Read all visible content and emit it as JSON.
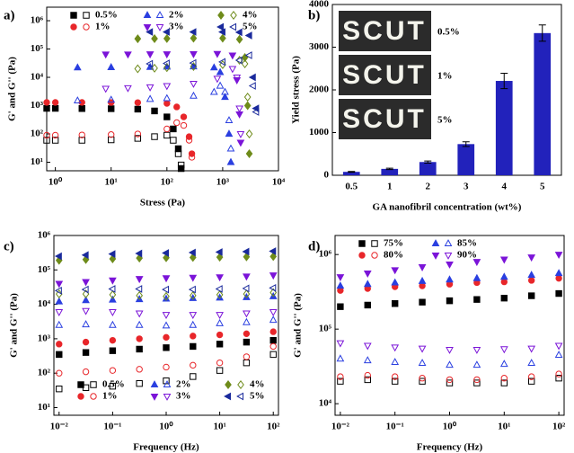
{
  "chart_data": [
    {
      "type": "scatter",
      "panel_label": "a)",
      "xlabel": "Stress (Pa)",
      "ylabel": "G' and G'' (Pa)",
      "xlog": true,
      "ylog": true,
      "legend": "upper left",
      "xlim": [
        0.7,
        10000
      ],
      "ylim": [
        5,
        3000000
      ],
      "xticks": [
        {
          "value": 1,
          "label": "10⁰"
        },
        {
          "value": 10,
          "label": "10¹"
        },
        {
          "value": 100,
          "label": "10²"
        },
        {
          "value": 1000,
          "label": "10³"
        },
        {
          "value": 10000,
          "label": "10⁴"
        }
      ],
      "yticks": [
        {
          "value": 10,
          "label": "10¹"
        },
        {
          "value": 100,
          "label": "10²"
        },
        {
          "value": 1000,
          "label": "10³"
        },
        {
          "value": 10000,
          "label": "10⁴"
        },
        {
          "value": 100000,
          "label": "10⁵"
        },
        {
          "value": 1000000,
          "label": "10⁶"
        }
      ],
      "series": [
        {
          "name": "0.5%",
          "color": "#000000",
          "marker": "square",
          "x": [
            0.7,
            1,
            3,
            10,
            30,
            60,
            100,
            130,
            160,
            180
          ],
          "storage": [
            800,
            800,
            790,
            780,
            750,
            650,
            400,
            150,
            30,
            6
          ],
          "loss": [
            60,
            60,
            60,
            62,
            70,
            80,
            90,
            60,
            20,
            8
          ]
        },
        {
          "name": "1%",
          "color": "#e8262a",
          "marker": "circle",
          "x": [
            0.7,
            1,
            3,
            10,
            30,
            100,
            150,
            200,
            250,
            280
          ],
          "storage": [
            1300,
            1300,
            1300,
            1290,
            1280,
            1200,
            900,
            400,
            80,
            20
          ],
          "loss": [
            90,
            90,
            92,
            95,
            100,
            150,
            250,
            200,
            60,
            15
          ]
        },
        {
          "name": "2%",
          "color": "#2a3fe0",
          "marker": "triangle-up",
          "x": [
            2.5,
            10,
            50,
            100,
            300,
            700,
            900,
            1100,
            1300,
            1400
          ],
          "storage": [
            22000,
            22500,
            23000,
            23500,
            24000,
            22000,
            15000,
            2000,
            100,
            10
          ],
          "loss": [
            1500,
            1600,
            1700,
            1800,
            2200,
            3000,
            5000,
            3000,
            300,
            30
          ]
        },
        {
          "name": "3%",
          "color": "#7b14d8",
          "marker": "triangle-down",
          "x": [
            8,
            20,
            50,
            100,
            300,
            800,
            1500,
            1800,
            2000,
            2100
          ],
          "storage": [
            65000,
            65000,
            66000,
            66000,
            67000,
            68000,
            60000,
            8000,
            500,
            50
          ],
          "loss": [
            4000,
            4200,
            4500,
            5000,
            6000,
            9000,
            20000,
            10000,
            800,
            100
          ]
        },
        {
          "name": "4%",
          "color": "#6e8b1a",
          "marker": "diamond",
          "x": [
            30,
            60,
            100,
            300,
            1000,
            2000,
            2500,
            2800,
            3000
          ],
          "storage": [
            230000,
            232000,
            235000,
            240000,
            240000,
            220000,
            50000,
            1000,
            20
          ],
          "loss": [
            20000,
            21000,
            22000,
            24000,
            28000,
            40000,
            30000,
            2000,
            100
          ]
        },
        {
          "name": "5%",
          "color": "#1a2a9c",
          "marker": "triangle-left",
          "x": [
            50,
            100,
            300,
            1000,
            2000,
            3000,
            3500,
            4000
          ],
          "storage": [
            400000,
            400000,
            400000,
            400000,
            390000,
            300000,
            10000,
            800
          ],
          "loss": [
            30000,
            31000,
            32000,
            35000,
            40000,
            60000,
            5000,
            600
          ]
        }
      ]
    },
    {
      "type": "bar",
      "panel_label": "b)",
      "xlabel": "GA nanofibril concentration (wt%)",
      "ylabel": "Yield stress (Pa)",
      "categories": [
        "0.5",
        "1",
        "2",
        "3",
        "4",
        "5"
      ],
      "values": [
        80,
        150,
        310,
        730,
        2210,
        3330
      ],
      "errors": [
        10,
        15,
        25,
        55,
        180,
        190
      ],
      "color": "#2222bb",
      "ylim": [
        0,
        4000
      ],
      "yticks": [
        0,
        1000,
        2000,
        3000,
        4000
      ],
      "inset": {
        "text": "SCUT",
        "labels": [
          "0.5%",
          "1%",
          "5%"
        ]
      }
    },
    {
      "type": "scatter",
      "panel_label": "c)",
      "xlabel": "Frequency (Hz)",
      "ylabel": "G' and G'' (Pa)",
      "xlog": true,
      "ylog": true,
      "legend": "lower left",
      "xlim": [
        0.008,
        125
      ],
      "ylim": [
        6,
        1000000
      ],
      "xticks": [
        {
          "value": 0.01,
          "label": "10⁻²"
        },
        {
          "value": 0.1,
          "label": "10⁻¹"
        },
        {
          "value": 1,
          "label": "10⁰"
        },
        {
          "value": 10,
          "label": "10¹"
        },
        {
          "value": 100,
          "label": "10²"
        }
      ],
      "yticks": [
        {
          "value": 10,
          "label": "10¹"
        },
        {
          "value": 100,
          "label": "10²"
        },
        {
          "value": 1000,
          "label": "10³"
        },
        {
          "value": 10000,
          "label": "10⁴"
        },
        {
          "value": 100000,
          "label": "10⁵"
        },
        {
          "value": 1000000,
          "label": "10⁶"
        }
      ],
      "x": [
        0.01,
        0.0316,
        0.1,
        0.316,
        1,
        3.16,
        10,
        31.6,
        100
      ],
      "series": [
        {
          "name": "0.5%",
          "color": "#000000",
          "marker": "square",
          "storage": [
            350,
            400,
            450,
            500,
            550,
            600,
            700,
            800,
            900
          ],
          "loss": [
            35,
            38,
            42,
            50,
            60,
            80,
            120,
            200,
            350
          ]
        },
        {
          "name": "1%",
          "color": "#e8262a",
          "marker": "circle",
          "storage": [
            700,
            800,
            900,
            1000,
            1100,
            1200,
            1300,
            1400,
            1600
          ],
          "loss": [
            100,
            110,
            120,
            130,
            150,
            170,
            200,
            300,
            600
          ]
        },
        {
          "name": "2%",
          "color": "#2a3fe0",
          "marker": "triangle-up",
          "storage": [
            12000,
            13000,
            13500,
            14000,
            14500,
            15000,
            15500,
            16000,
            17000
          ],
          "loss": [
            2500,
            2600,
            2500,
            2500,
            2400,
            2500,
            2800,
            3000,
            3500
          ]
        },
        {
          "name": "3%",
          "color": "#7b14d8",
          "marker": "triangle-down",
          "storage": [
            40000,
            45000,
            50000,
            55000,
            58000,
            60000,
            62000,
            65000,
            70000
          ],
          "loss": [
            6000,
            6500,
            6000,
            5500,
            5000,
            5000,
            5000,
            5500,
            6000
          ]
        },
        {
          "name": "4%",
          "color": "#6e8b1a",
          "marker": "diamond",
          "storage": [
            190000,
            200000,
            210000,
            220000,
            225000,
            230000,
            235000,
            240000,
            245000
          ],
          "loss": [
            20000,
            20000,
            19000,
            18000,
            17000,
            18000,
            19000,
            20000,
            22000
          ]
        },
        {
          "name": "5%",
          "color": "#1a2a9c",
          "marker": "triangle-left",
          "storage": [
            250000,
            270000,
            290000,
            300000,
            310000,
            320000,
            330000,
            340000,
            350000
          ],
          "loss": [
            25000,
            27000,
            28000,
            28000,
            27000,
            27000,
            28000,
            29000,
            30000
          ]
        }
      ]
    },
    {
      "type": "scatter",
      "panel_label": "d)",
      "xlabel": "Frequency (Hz)",
      "ylabel": "G' and G'' (Pa)",
      "xlog": true,
      "ylog": true,
      "legend": "upper left",
      "xlim": [
        0.008,
        125
      ],
      "ylim": [
        7000,
        1800000
      ],
      "xticks": [
        {
          "value": 0.01,
          "label": "10⁻²"
        },
        {
          "value": 0.1,
          "label": "10⁻¹"
        },
        {
          "value": 1,
          "label": "10⁰"
        },
        {
          "value": 10,
          "label": "10¹"
        },
        {
          "value": 100,
          "label": "10²"
        }
      ],
      "yticks": [
        {
          "value": 10000,
          "label": "10⁴"
        },
        {
          "value": 100000,
          "label": "10⁵"
        },
        {
          "value": 1000000,
          "label": "10⁶"
        }
      ],
      "x": [
        0.01,
        0.0316,
        0.1,
        0.316,
        1,
        3.16,
        10,
        31.6,
        100
      ],
      "series": [
        {
          "name": "75%",
          "color": "#000000",
          "marker": "square",
          "storage": [
            200000,
            210000,
            220000,
            230000,
            240000,
            250000,
            260000,
            280000,
            300000
          ],
          "loss": [
            20000,
            21000,
            20000,
            20000,
            19000,
            19000,
            19000,
            20000,
            22000
          ]
        },
        {
          "name": "80%",
          "color": "#e8262a",
          "marker": "circle",
          "storage": [
            330000,
            350000,
            370000,
            380000,
            400000,
            420000,
            430000,
            450000,
            480000
          ],
          "loss": [
            23000,
            24000,
            23000,
            22000,
            21000,
            21000,
            22000,
            23000,
            25000
          ]
        },
        {
          "name": "85%",
          "color": "#2a3fe0",
          "marker": "triangle-up",
          "storage": [
            380000,
            400000,
            420000,
            440000,
            460000,
            480000,
            500000,
            530000,
            560000
          ],
          "loss": [
            40000,
            38000,
            36000,
            35000,
            33000,
            33000,
            34000,
            35000,
            45000
          ]
        },
        {
          "name": "90%",
          "color": "#7b14d8",
          "marker": "triangle-down",
          "storage": [
            500000,
            560000,
            620000,
            680000,
            740000,
            800000,
            860000,
            920000,
            1000000
          ],
          "loss": [
            65000,
            60000,
            57000,
            55000,
            53000,
            53000,
            54000,
            55000,
            60000
          ]
        }
      ]
    }
  ]
}
